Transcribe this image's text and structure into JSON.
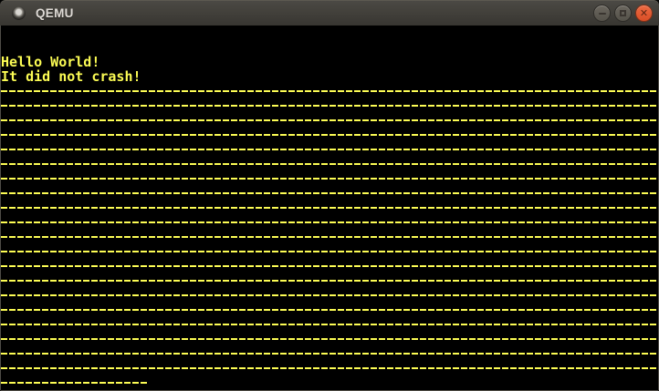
{
  "window": {
    "title": "QEMU",
    "icon": "qemu-app-icon",
    "controls": [
      {
        "name": "minimize",
        "icon": "minus-icon"
      },
      {
        "name": "maximize",
        "icon": "square-outline-icon"
      },
      {
        "name": "close",
        "icon": "x-icon"
      }
    ]
  },
  "colors": {
    "text_yellow": "#FCFC54",
    "screen_bg": "#000000",
    "titlebar_top": "#4B4944",
    "titlebar_bottom": "#383631",
    "titlebar_text": "#DFDBD6",
    "close_orange": "#E0562F",
    "button_gray": "#5E5A52",
    "window_border": "#4F4C46"
  },
  "screen": {
    "columns": 80,
    "rows": 25,
    "lines": [
      {
        "row": 2,
        "text": "Hello World!"
      },
      {
        "row": 3,
        "text": "It did not crash!"
      },
      {
        "row": 4,
        "repeat_char": "-",
        "count": 80
      },
      {
        "row": 5,
        "repeat_char": "-",
        "count": 80
      },
      {
        "row": 6,
        "repeat_char": "-",
        "count": 80
      },
      {
        "row": 7,
        "repeat_char": "-",
        "count": 80
      },
      {
        "row": 8,
        "repeat_char": "-",
        "count": 80
      },
      {
        "row": 9,
        "repeat_char": "-",
        "count": 80
      },
      {
        "row": 10,
        "repeat_char": "-",
        "count": 80
      },
      {
        "row": 11,
        "repeat_char": "-",
        "count": 80
      },
      {
        "row": 12,
        "repeat_char": "-",
        "count": 80
      },
      {
        "row": 13,
        "repeat_char": "-",
        "count": 80
      },
      {
        "row": 14,
        "repeat_char": "-",
        "count": 80
      },
      {
        "row": 15,
        "repeat_char": "-",
        "count": 80
      },
      {
        "row": 16,
        "repeat_char": "-",
        "count": 80
      },
      {
        "row": 17,
        "repeat_char": "-",
        "count": 80
      },
      {
        "row": 18,
        "repeat_char": "-",
        "count": 80
      },
      {
        "row": 19,
        "repeat_char": "-",
        "count": 80
      },
      {
        "row": 20,
        "repeat_char": "-",
        "count": 80
      },
      {
        "row": 21,
        "repeat_char": "-",
        "count": 80
      },
      {
        "row": 22,
        "repeat_char": "-",
        "count": 80
      },
      {
        "row": 23,
        "repeat_char": "-",
        "count": 80
      },
      {
        "row": 24,
        "repeat_char": "-",
        "count": 18
      }
    ]
  }
}
